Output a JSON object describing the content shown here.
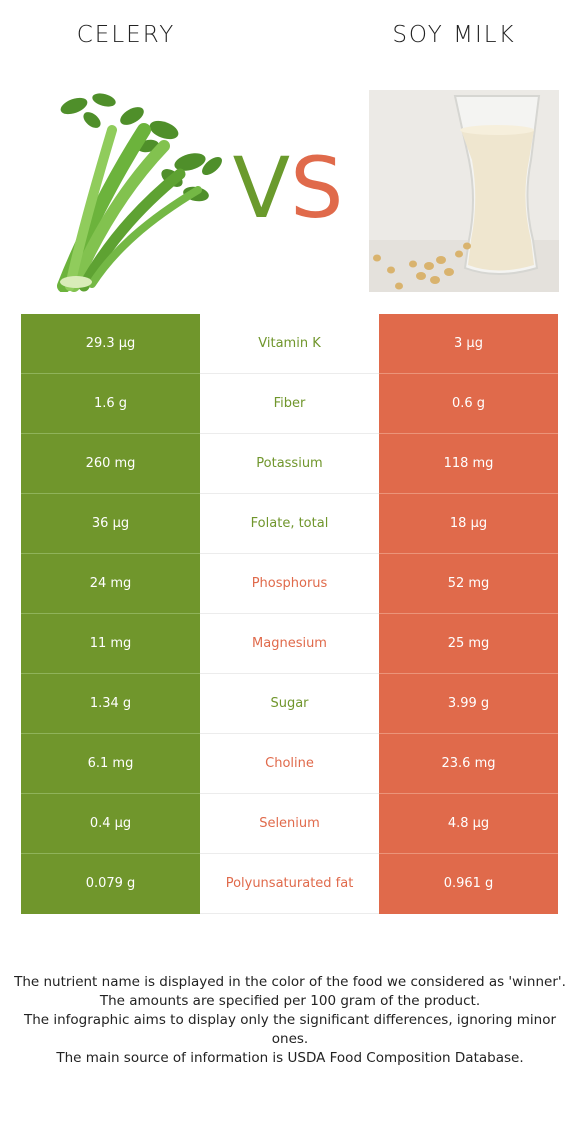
{
  "header": {
    "left_food": "CELERY",
    "right_food": "SOY MILK",
    "vs_v": "V",
    "vs_s": "S"
  },
  "colors": {
    "left_food": "#70962c",
    "right_food": "#e06a4b"
  },
  "images": {
    "left": "celery-photo",
    "right": "soy-milk-glass-photo"
  },
  "rows": [
    {
      "left": "29.3 µg",
      "nutrient": "Vitamin K",
      "right": "3 µg",
      "winner": "left"
    },
    {
      "left": "1.6 g",
      "nutrient": "Fiber",
      "right": "0.6 g",
      "winner": "left"
    },
    {
      "left": "260 mg",
      "nutrient": "Potassium",
      "right": "118 mg",
      "winner": "left"
    },
    {
      "left": "36 µg",
      "nutrient": "Folate, total",
      "right": "18 µg",
      "winner": "left"
    },
    {
      "left": "24 mg",
      "nutrient": "Phosphorus",
      "right": "52 mg",
      "winner": "right"
    },
    {
      "left": "11 mg",
      "nutrient": "Magnesium",
      "right": "25 mg",
      "winner": "right"
    },
    {
      "left": "1.34 g",
      "nutrient": "Sugar",
      "right": "3.99 g",
      "winner": "left"
    },
    {
      "left": "6.1 mg",
      "nutrient": "Choline",
      "right": "23.6 mg",
      "winner": "right"
    },
    {
      "left": "0.4 µg",
      "nutrient": "Selenium",
      "right": "4.8 µg",
      "winner": "right"
    },
    {
      "left": "0.079 g",
      "nutrient": "Polyunsaturated fat",
      "right": "0.961 g",
      "winner": "right"
    }
  ],
  "footer": {
    "line1": "The nutrient name is displayed in the color of the food we considered as 'winner'.",
    "line2": "The amounts are specified per 100 gram of the product.",
    "line3": "The infographic aims to display only the significant differences, ignoring minor ones.",
    "line4": "The main source of information is USDA Food Composition Database."
  }
}
